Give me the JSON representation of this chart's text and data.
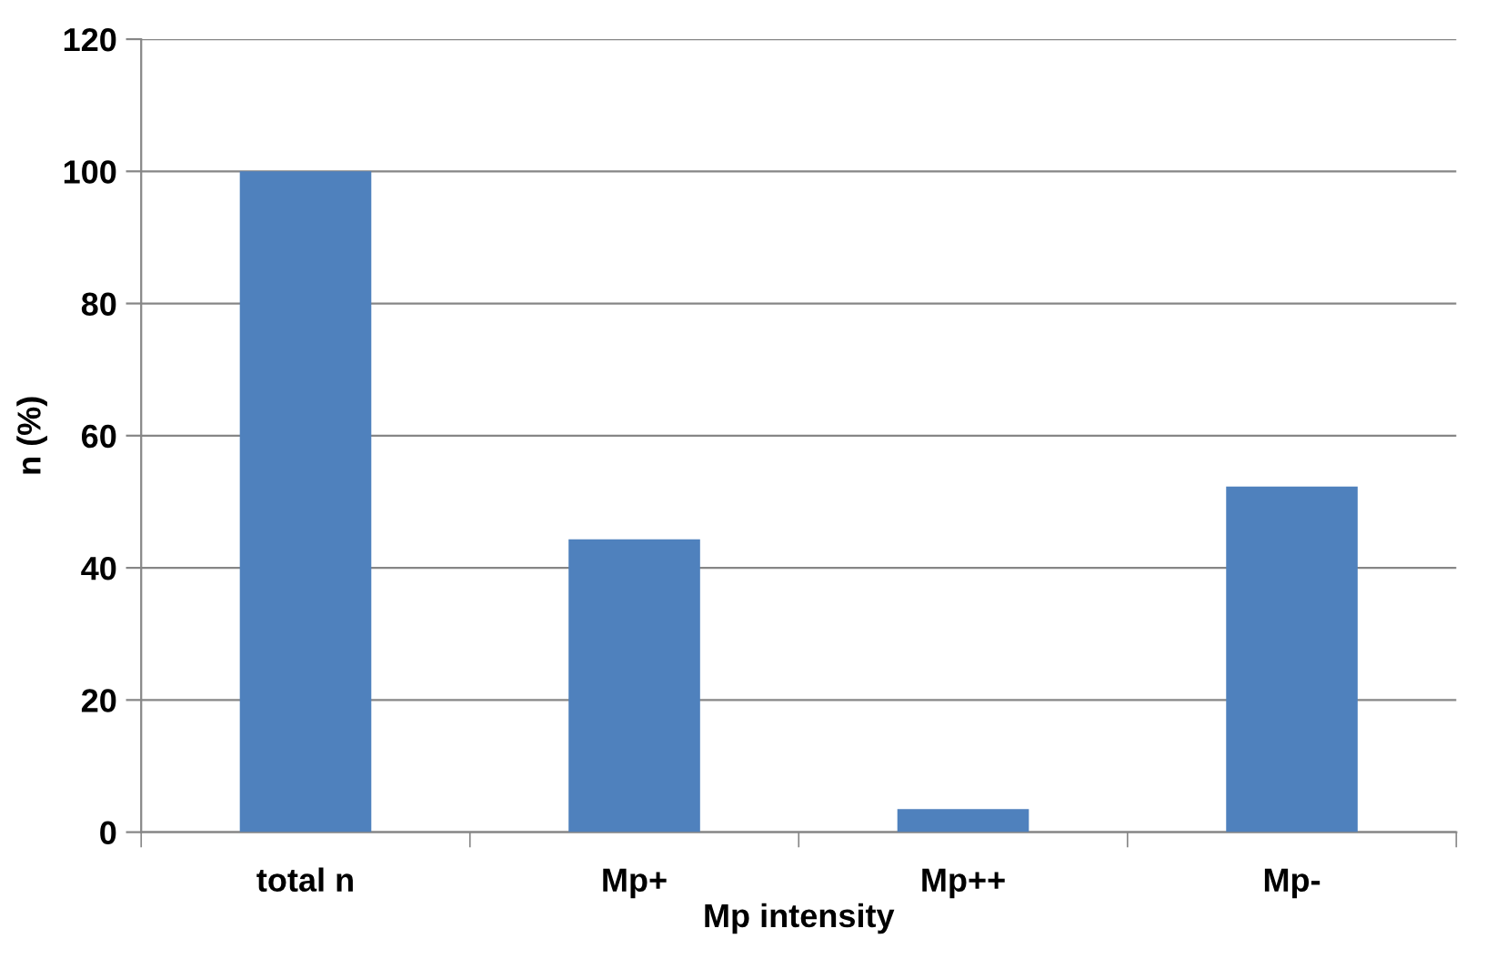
{
  "chart_data": {
    "type": "bar",
    "xlabel": "Mp intensity",
    "ylabel": "n (%)",
    "categories": [
      "total n",
      "Mp+",
      "Mp++",
      "Mp-"
    ],
    "values": [
      100,
      44.3,
      3.5,
      52.3
    ],
    "color": "#4f81bd",
    "ylim": [
      0,
      120
    ],
    "yticks": [
      0,
      20,
      40,
      60,
      80,
      100,
      120
    ],
    "grid": "y"
  }
}
